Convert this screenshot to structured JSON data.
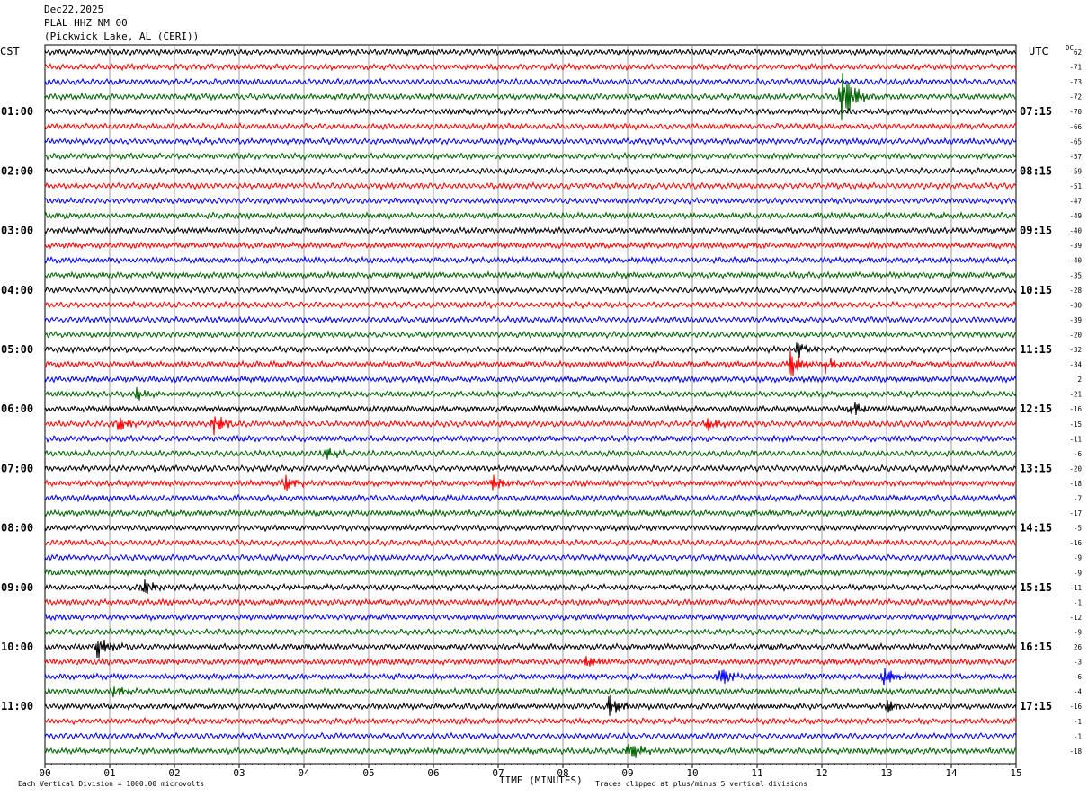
{
  "header": {
    "date": "Dec22,2025",
    "station": "PLAL HHZ NM 00",
    "location": "(Pickwick Lake, AL (CERI))"
  },
  "left_zone": "CST",
  "right_zone": "UTC",
  "dc_label": "DC",
  "footer": {
    "scale_note": "Each Vertical Division = 1000.00 microvolts",
    "xlabel": "TIME (MINUTES)",
    "clip_note": "Traces clipped at plus/minus 5 vertical divisions"
  },
  "colors": {
    "trace": [
      "#000000",
      "#ff0000",
      "#0000ff",
      "#006400"
    ],
    "grid": "#888888"
  },
  "chart_data": {
    "type": "line",
    "title": "PLAL HHZ NM 00",
    "xlabel": "TIME (MINUTES)",
    "xlim": [
      0,
      15
    ],
    "x_ticks": [
      "00",
      "01",
      "02",
      "03",
      "04",
      "05",
      "06",
      "07",
      "08",
      "09",
      "10",
      "11",
      "12",
      "13",
      "14",
      "15"
    ],
    "trace_count": 48,
    "minutes_per_trace": 15,
    "left_time_labels": [
      "01:00",
      "02:00",
      "03:00",
      "04:00",
      "05:00",
      "06:00",
      "07:00",
      "08:00",
      "09:00",
      "10:00",
      "11:00"
    ],
    "right_time_labels": [
      "07:15",
      "08:15",
      "09:15",
      "10:15",
      "11:15",
      "12:15",
      "13:15",
      "14:15",
      "15:15",
      "16:15",
      "17:15"
    ],
    "dc_offsets": [
      "62",
      "-71",
      "-73",
      "-72",
      "-70",
      "-66",
      "-65",
      "-57",
      "-59",
      "-51",
      "-47",
      "-49",
      "-40",
      "-39",
      "-40",
      "-35",
      "-28",
      "-30",
      "-39",
      "-20",
      "-32",
      "-34",
      "2",
      "-21",
      "-16",
      "-15",
      "-11",
      "-6",
      "-20",
      "-18",
      "-7",
      "-17",
      "-5",
      "-16",
      "-9",
      "-9",
      "-11",
      "-1",
      "-12",
      "-9",
      "26",
      "-3",
      "-6",
      "-4",
      "-16",
      "-1",
      "-1",
      "-18"
    ],
    "events": [
      {
        "trace": 3,
        "minute": 12.3,
        "amplitude": 4.2
      },
      {
        "trace": 20,
        "minute": 11.6,
        "amplitude": 1.2
      },
      {
        "trace": 21,
        "minute": 11.5,
        "amplitude": 1.8
      },
      {
        "trace": 21,
        "minute": 12.05,
        "amplitude": 1.0
      },
      {
        "trace": 23,
        "minute": 1.4,
        "amplitude": 0.8
      },
      {
        "trace": 24,
        "minute": 12.45,
        "amplitude": 1.2
      },
      {
        "trace": 25,
        "minute": 1.1,
        "amplitude": 1.2
      },
      {
        "trace": 25,
        "minute": 2.6,
        "amplitude": 1.5
      },
      {
        "trace": 25,
        "minute": 10.2,
        "amplitude": 1.0
      },
      {
        "trace": 27,
        "minute": 4.3,
        "amplitude": 1.0
      },
      {
        "trace": 29,
        "minute": 3.7,
        "amplitude": 1.0
      },
      {
        "trace": 29,
        "minute": 6.9,
        "amplitude": 1.0
      },
      {
        "trace": 36,
        "minute": 1.5,
        "amplitude": 1.2
      },
      {
        "trace": 40,
        "minute": 0.8,
        "amplitude": 1.5
      },
      {
        "trace": 41,
        "minute": 8.35,
        "amplitude": 1.0
      },
      {
        "trace": 42,
        "minute": 10.4,
        "amplitude": 1.5
      },
      {
        "trace": 42,
        "minute": 12.95,
        "amplitude": 1.3
      },
      {
        "trace": 43,
        "minute": 1.05,
        "amplitude": 0.8
      },
      {
        "trace": 44,
        "minute": 8.7,
        "amplitude": 1.5
      },
      {
        "trace": 44,
        "minute": 13.0,
        "amplitude": 0.8
      },
      {
        "trace": 47,
        "minute": 9.0,
        "amplitude": 1.5
      }
    ]
  }
}
